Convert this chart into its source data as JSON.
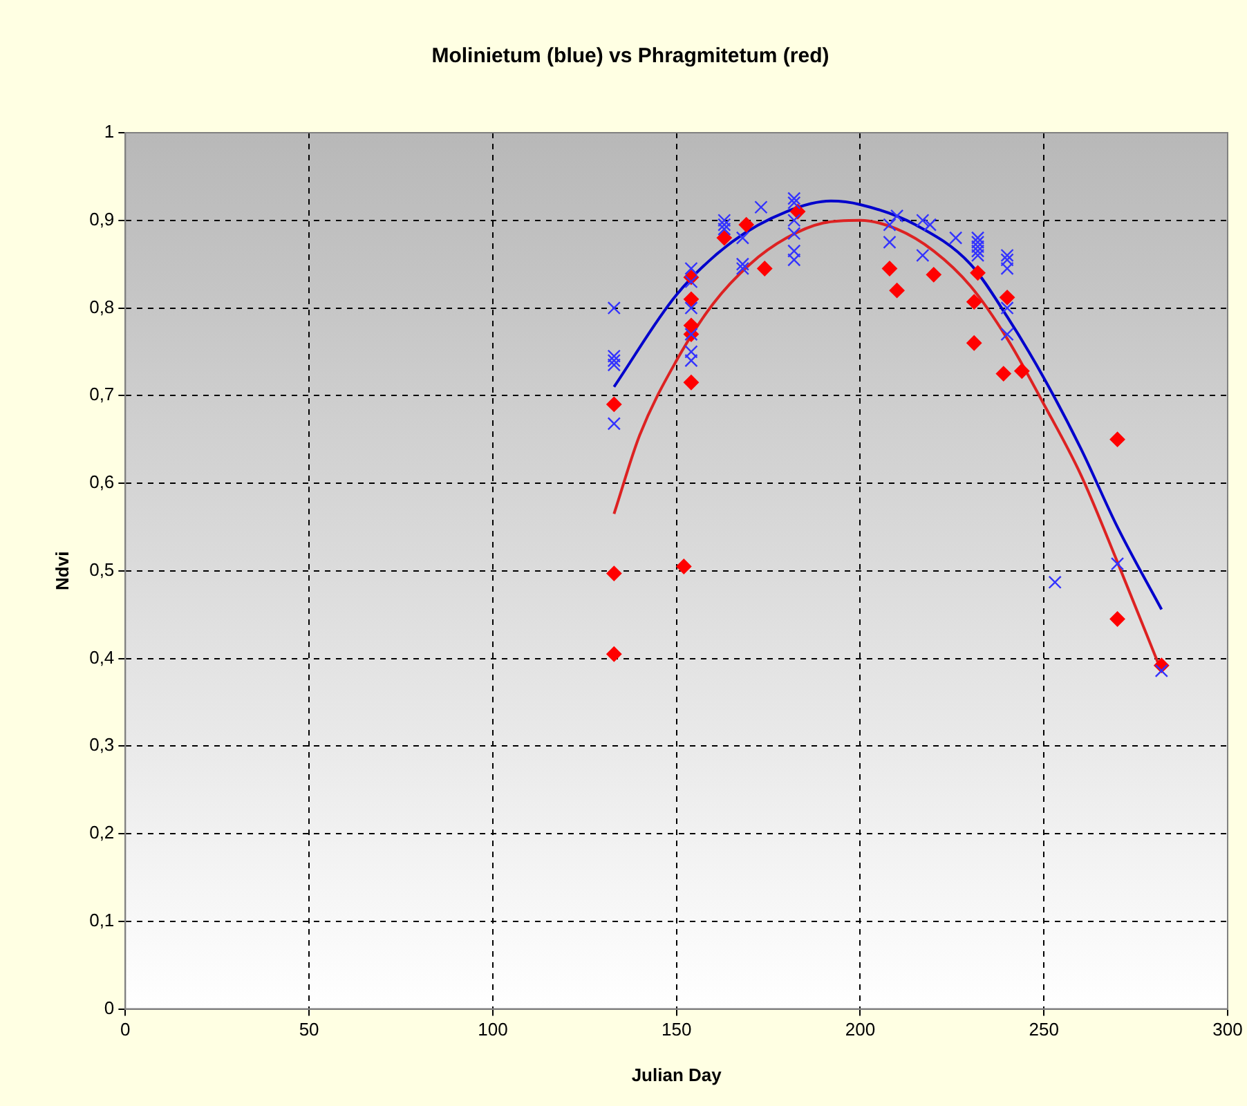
{
  "chart_data": {
    "type": "scatter",
    "title": "Molinietum (blue) vs Phragmitetum (red)",
    "xlabel": "Julian Day",
    "ylabel": "Ndvi",
    "xlim": [
      0,
      300
    ],
    "xticks": [
      0,
      50,
      100,
      150,
      200,
      250,
      300
    ],
    "ylim": [
      0,
      1
    ],
    "yticks": [
      0,
      {
        "value": 0.1,
        "label": "0,1"
      },
      {
        "value": 0.2,
        "label": "0,2"
      },
      {
        "value": 0.3,
        "label": "0,3"
      },
      {
        "value": 0.4,
        "label": "0,4"
      },
      {
        "value": 0.5,
        "label": "0,5"
      },
      {
        "value": 0.6,
        "label": "0,6"
      },
      {
        "value": 0.7,
        "label": "0,7"
      },
      {
        "value": 0.8,
        "label": "0,8"
      },
      {
        "value": 0.9,
        "label": "0,9"
      },
      1
    ],
    "grid": true,
    "legend": false,
    "series": [
      {
        "type": "scatter",
        "marker": "cross",
        "color": "#3333ff",
        "x": [
          133,
          133,
          133,
          133,
          133,
          154,
          154,
          154,
          154,
          154,
          154,
          163,
          163,
          163,
          168,
          168,
          168,
          173,
          182,
          182,
          182,
          182,
          182,
          182,
          208,
          208,
          210,
          217,
          217,
          219,
          226,
          232,
          232,
          232,
          232,
          232,
          240,
          240,
          240,
          240,
          240,
          253,
          270,
          282
        ],
        "values": [
          0.8,
          0.745,
          0.74,
          0.735,
          0.668,
          0.845,
          0.83,
          0.8,
          0.77,
          0.75,
          0.74,
          0.9,
          0.895,
          0.89,
          0.88,
          0.85,
          0.845,
          0.915,
          0.925,
          0.92,
          0.9,
          0.885,
          0.865,
          0.855,
          0.895,
          0.875,
          0.905,
          0.9,
          0.86,
          0.895,
          0.88,
          0.88,
          0.875,
          0.87,
          0.865,
          0.86,
          0.86,
          0.855,
          0.845,
          0.8,
          0.77,
          0.487,
          0.508,
          0.386
        ]
      },
      {
        "type": "scatter",
        "marker": "diamond",
        "color": "#ff0000",
        "x": [
          133,
          133,
          133,
          152,
          154,
          154,
          154,
          154,
          154,
          163,
          169,
          174,
          183,
          208,
          210,
          220,
          231,
          231,
          232,
          239,
          240,
          244,
          270,
          270,
          282
        ],
        "values": [
          0.69,
          0.497,
          0.405,
          0.505,
          0.835,
          0.81,
          0.78,
          0.77,
          0.715,
          0.88,
          0.895,
          0.845,
          0.91,
          0.845,
          0.82,
          0.838,
          0.807,
          0.76,
          0.84,
          0.725,
          0.812,
          0.728,
          0.65,
          0.445,
          0.392
        ]
      },
      {
        "type": "line",
        "marker": "none",
        "color": "#0000cc",
        "x": [
          133,
          150,
          165,
          180,
          192,
          200,
          215,
          230,
          240,
          250,
          260,
          270,
          282
        ],
        "values": [
          0.71,
          0.815,
          0.875,
          0.91,
          0.922,
          0.918,
          0.895,
          0.85,
          0.79,
          0.72,
          0.64,
          0.55,
          0.456
        ]
      },
      {
        "type": "line",
        "marker": "none",
        "color": "#dd2222",
        "x": [
          133,
          140,
          150,
          160,
          170,
          180,
          190,
          200,
          210,
          220,
          230,
          240,
          250,
          260,
          270,
          282
        ],
        "values": [
          0.565,
          0.655,
          0.74,
          0.805,
          0.85,
          0.88,
          0.897,
          0.9,
          0.89,
          0.865,
          0.825,
          0.765,
          0.69,
          0.61,
          0.51,
          0.385
        ]
      }
    ]
  }
}
